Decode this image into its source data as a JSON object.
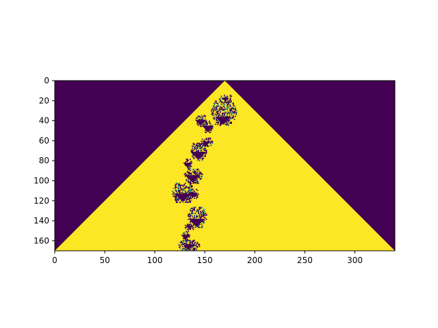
{
  "chart_data": {
    "type": "heatmap",
    "title": "",
    "xlabel": "",
    "ylabel": "",
    "xlim": [
      0,
      340
    ],
    "ylim": [
      170,
      0
    ],
    "xticks": [
      0,
      50,
      100,
      150,
      200,
      250,
      300
    ],
    "yticks": [
      0,
      20,
      40,
      60,
      80,
      100,
      120,
      140,
      160
    ],
    "xtick_labels": [
      "0",
      "50",
      "100",
      "150",
      "200",
      "250",
      "300"
    ],
    "ytick_labels": [
      "0",
      "20",
      "40",
      "60",
      "80",
      "100",
      "120",
      "140",
      "160"
    ],
    "colormap": "viridis",
    "colors": {
      "low": "#440154",
      "mid": "#21918c",
      "high": "#fde725"
    },
    "pattern": {
      "description": "cellular-automaton triangle grown from a single seed cell",
      "apex_column": 170,
      "rows": 170,
      "columns": 340,
      "value_outside": 0,
      "value_inside": 1
    },
    "defect_blocks": [
      {
        "col0": 155,
        "col1": 182,
        "row0": 20,
        "row1": 45
      },
      {
        "col0": 163,
        "col1": 178,
        "row0": 14,
        "row1": 22
      },
      {
        "col0": 140,
        "col1": 152,
        "row0": 34,
        "row1": 46
      },
      {
        "col0": 148,
        "col1": 158,
        "row0": 40,
        "row1": 52
      },
      {
        "col0": 145,
        "col1": 158,
        "row0": 57,
        "row1": 66
      },
      {
        "col0": 135,
        "col1": 152,
        "row0": 62,
        "row1": 80
      },
      {
        "col0": 129,
        "col1": 137,
        "row0": 78,
        "row1": 88
      },
      {
        "col0": 128,
        "col1": 148,
        "row0": 88,
        "row1": 103
      },
      {
        "col0": 116,
        "col1": 140,
        "row0": 102,
        "row1": 122
      },
      {
        "col0": 132,
        "col1": 144,
        "row0": 108,
        "row1": 118
      },
      {
        "col0": 132,
        "col1": 152,
        "row0": 126,
        "row1": 147
      },
      {
        "col0": 128,
        "col1": 140,
        "row0": 143,
        "row1": 149
      },
      {
        "col0": 127,
        "col1": 135,
        "row0": 150,
        "row1": 160
      },
      {
        "col0": 122,
        "col1": 145,
        "row0": 159,
        "row1": 170
      }
    ]
  }
}
